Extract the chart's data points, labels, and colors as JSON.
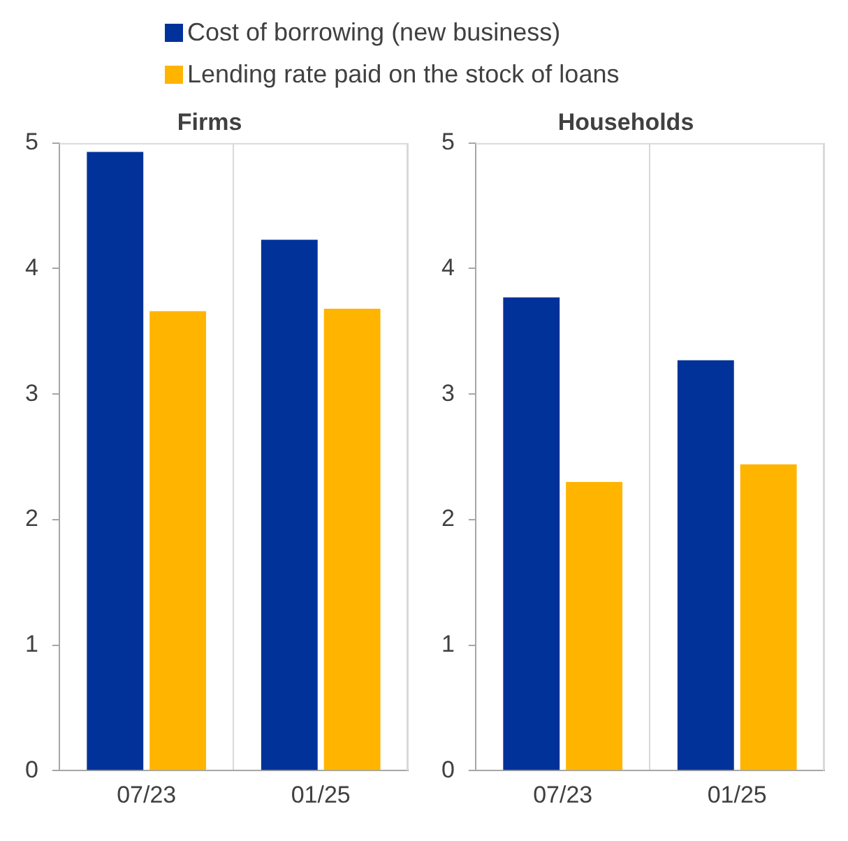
{
  "chart_data": [
    {
      "type": "bar",
      "title": "Firms",
      "categories": [
        "07/23",
        "01/25"
      ],
      "series": [
        {
          "name": "Cost of borrowing (new business)",
          "color": "#003299",
          "values": [
            4.93,
            4.23
          ]
        },
        {
          "name": "Lending rate paid on the stock of loans",
          "color": "#ffb400",
          "values": [
            3.66,
            3.68
          ]
        }
      ],
      "ylim": [
        0,
        5
      ],
      "yticks": [
        0,
        1,
        2,
        3,
        4,
        5
      ],
      "grid": "x",
      "legend": "top"
    },
    {
      "type": "bar",
      "title": "Households",
      "categories": [
        "07/23",
        "01/25"
      ],
      "series": [
        {
          "color": "#003299",
          "values": [
            3.77,
            3.27
          ]
        },
        {
          "color": "#ffb400",
          "values": [
            2.3,
            2.44
          ]
        }
      ],
      "ylim": [
        0,
        5
      ],
      "yticks": [
        0,
        1,
        2,
        3,
        4,
        5
      ],
      "grid": "x"
    }
  ]
}
